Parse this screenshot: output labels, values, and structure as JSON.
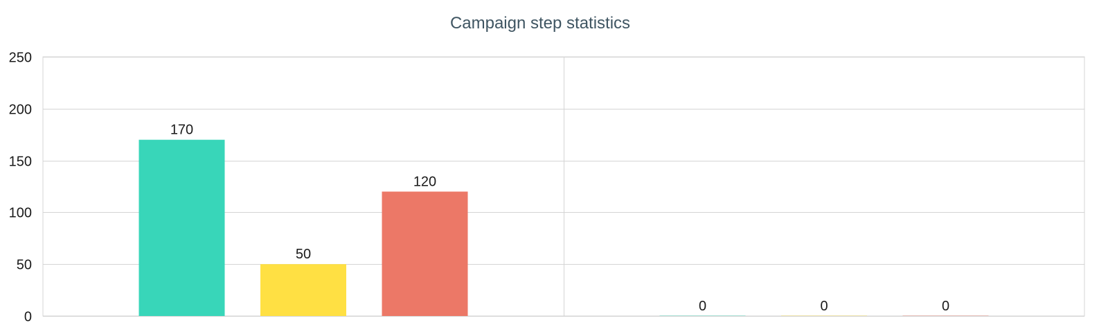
{
  "chart_data": {
    "type": "bar",
    "title": "Campaign step statistics",
    "xlabel": "",
    "ylabel": "",
    "ylim": [
      0,
      250
    ],
    "yticks": [
      0,
      50,
      100,
      150,
      200,
      250
    ],
    "grid": true,
    "groups": 2,
    "series": [
      {
        "values": [
          170,
          0
        ],
        "color": "#38d6b9"
      },
      {
        "values": [
          50,
          0
        ],
        "color": "#ffe043"
      },
      {
        "values": [
          120,
          0
        ],
        "color": "#ec7867"
      }
    ]
  }
}
